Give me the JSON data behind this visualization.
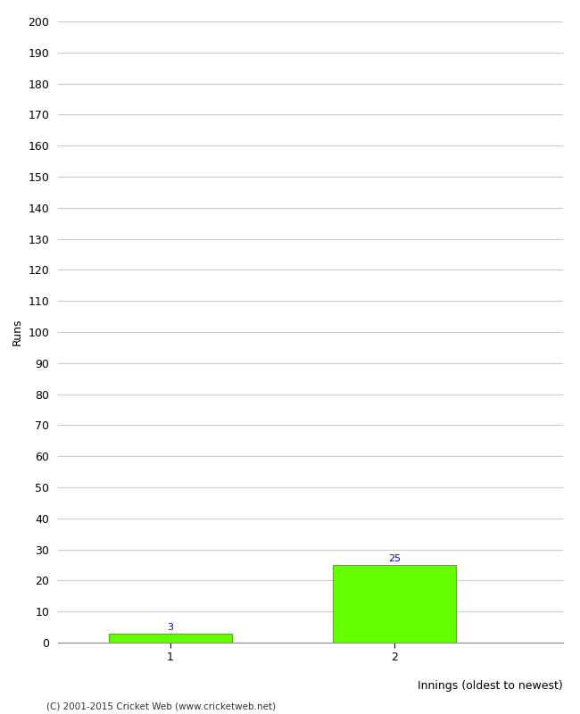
{
  "categories": [
    "1",
    "2"
  ],
  "values": [
    3,
    25
  ],
  "bar_color": "#66ff00",
  "bar_edge_color": "#44bb00",
  "ylabel": "Runs",
  "xlabel": "Innings (oldest to newest)",
  "ylim": [
    0,
    200
  ],
  "ytick_step": 10,
  "value_label_color": "#0000cc",
  "value_label_fontsize": 8,
  "footer_text": "(C) 2001-2015 Cricket Web (www.cricketweb.net)",
  "background_color": "#ffffff",
  "grid_color": "#cccccc",
  "tick_label_fontsize": 9,
  "axis_label_fontsize": 9,
  "bar_width": 0.55
}
